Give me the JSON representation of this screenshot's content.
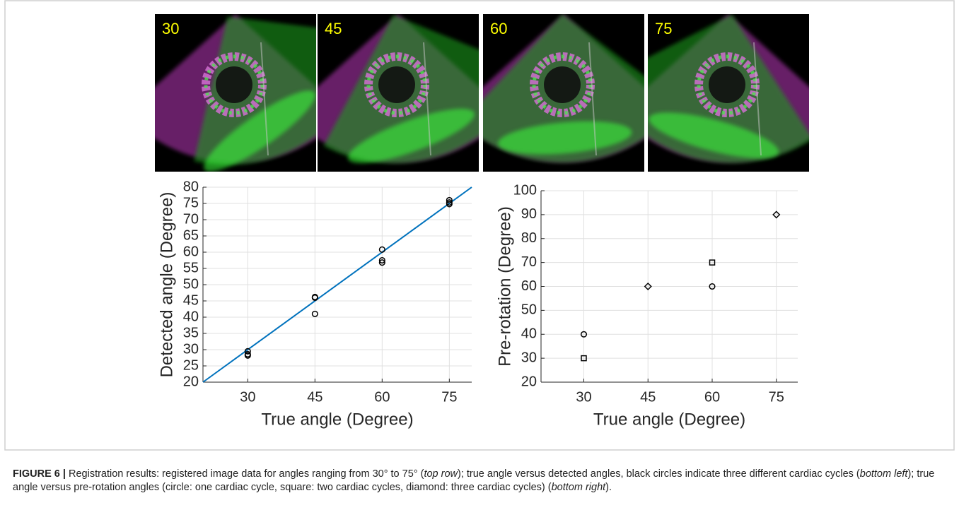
{
  "panels": [
    {
      "label": "30"
    },
    {
      "label": "45"
    },
    {
      "label": "60"
    },
    {
      "label": "75"
    }
  ],
  "chart_data": [
    {
      "type": "scatter",
      "xlabel": "True angle (Degree)",
      "ylabel": "Detected angle (Degree)",
      "xlim": [
        20,
        80
      ],
      "xticks": [
        30,
        45,
        60,
        75
      ],
      "ylim": [
        20,
        80
      ],
      "yticks": [
        20,
        25,
        30,
        35,
        40,
        45,
        50,
        55,
        60,
        65,
        70,
        75,
        80
      ],
      "grid": true,
      "line": {
        "color": "#0072bd",
        "x": [
          20,
          80
        ],
        "y": [
          20,
          80
        ]
      },
      "series": [
        {
          "marker": "circle",
          "color": "#000000",
          "x": [
            30,
            30,
            30,
            45,
            45,
            45,
            60,
            60,
            60,
            75,
            75,
            75
          ],
          "y": [
            29.5,
            28.6,
            28.2,
            46.0,
            46.2,
            41.0,
            60.8,
            57.5,
            56.8,
            76.0,
            75.3,
            74.8
          ]
        }
      ]
    },
    {
      "type": "scatter",
      "xlabel": "True angle (Degree)",
      "ylabel": "Pre-rotation (Degree)",
      "xlim": [
        20,
        80
      ],
      "xticks": [
        30,
        45,
        60,
        75
      ],
      "ylim": [
        20,
        100
      ],
      "yticks": [
        20,
        30,
        40,
        50,
        60,
        70,
        80,
        90,
        100
      ],
      "grid": true,
      "series": [
        {
          "marker": "circle",
          "color": "#000000",
          "x": [
            30,
            60
          ],
          "y": [
            40,
            60
          ]
        },
        {
          "marker": "square",
          "color": "#000000",
          "x": [
            30,
            60
          ],
          "y": [
            30,
            70
          ]
        },
        {
          "marker": "diamond",
          "color": "#000000",
          "x": [
            45,
            75
          ],
          "y": [
            60,
            90
          ]
        }
      ]
    }
  ],
  "caption": {
    "label": "FIGURE 6 |",
    "segments": [
      {
        "text": " Registration results: registered image data for angles ranging from 30° to 75° (",
        "style": "normal"
      },
      {
        "text": "top row",
        "style": "italic"
      },
      {
        "text": "); true angle versus detected angles, black circles indicate three different cardiac cycles (",
        "style": "normal"
      },
      {
        "text": "bottom left",
        "style": "italic"
      },
      {
        "text": "); true angle versus pre-rotation angles (circle: one cardiac cycle, square: two cardiac cycles, diamond: three cardiac cycles) (",
        "style": "normal"
      },
      {
        "text": "bottom right",
        "style": "italic"
      },
      {
        "text": ").",
        "style": "normal"
      }
    ]
  }
}
